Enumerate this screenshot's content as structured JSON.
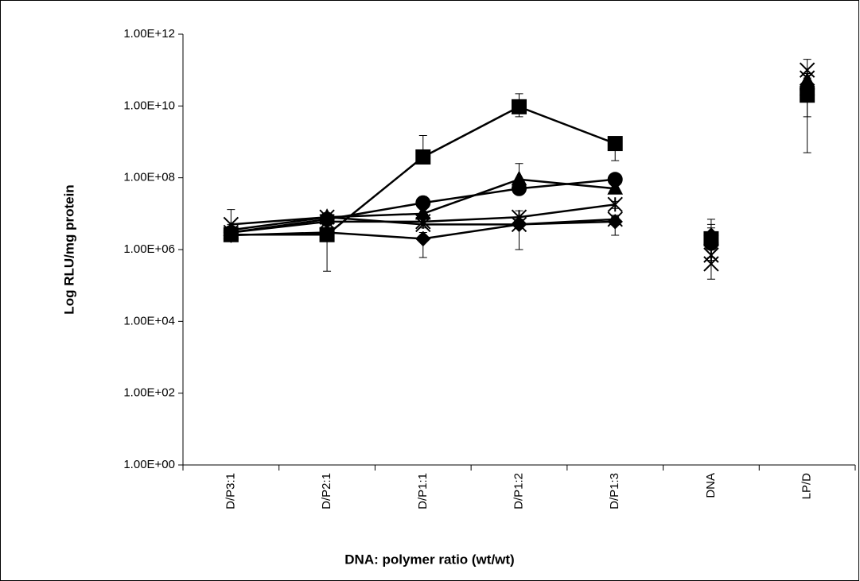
{
  "chart_data": {
    "type": "line",
    "x_label": "DNA: polymer ratio (wt/wt)",
    "y_label": "Log RLU/mg protein",
    "log_y": true,
    "categories": [
      "D/P3:1",
      "D/P2:1",
      "D/P1:1",
      "D/P1:2",
      "D/P1:3",
      "DNA",
      "LP/D"
    ],
    "connected_categories": 5,
    "ylim": [
      1,
      1000000000000
    ],
    "yticks": [
      {
        "value": 1,
        "label": "1.00E+00"
      },
      {
        "value": 100,
        "label": "1.00E+02"
      },
      {
        "value": 10000,
        "label": "1.00E+04"
      },
      {
        "value": 1000000,
        "label": "1.00E+06"
      },
      {
        "value": 100000000,
        "label": "1.00E+08"
      },
      {
        "value": 10000000000,
        "label": "1.00E+10"
      },
      {
        "value": 1000000000000,
        "label": "1.00E+12"
      }
    ],
    "series": [
      {
        "marker": "square",
        "color": "#000000",
        "values": [
          2600000,
          2600000,
          380000000,
          9500000000,
          900000000,
          2000000,
          20000000000
        ],
        "error_low": [
          2000000,
          250000,
          250000000,
          5000000000,
          300000000,
          1000000,
          5000000000
        ],
        "error_high": [
          3500000,
          8000000,
          1500000000,
          22000000000,
          1100000000,
          4000000,
          40000000000
        ]
      },
      {
        "marker": "circle",
        "color": "#000000",
        "values": [
          3000000,
          7000000,
          20000000,
          50000000,
          90000000,
          1500000,
          30000000000
        ],
        "error_low": [
          2500000,
          5000000,
          15000000,
          35000000,
          70000000,
          1000000,
          20000000000
        ],
        "error_high": [
          4000000,
          9000000,
          30000000,
          70000000,
          100000000,
          2500000,
          45000000000
        ]
      },
      {
        "marker": "triangle",
        "color": "#000000",
        "values": [
          3500000,
          8000000,
          10000000,
          90000000,
          50000000,
          2000000,
          50000000000
        ],
        "error_low": [
          2500000,
          6000000,
          8000000,
          50000000,
          40000000,
          1500000,
          30000000000
        ],
        "error_high": [
          5000000,
          10000000,
          13000000,
          250000000,
          60000000,
          3000000,
          70000000000
        ]
      },
      {
        "marker": "diamond",
        "color": "#000000",
        "values": [
          2500000,
          3000000,
          2000000,
          5000000,
          6000000,
          2500000,
          20000000000
        ],
        "error_low": [
          2000000,
          2500000,
          600000,
          1000000,
          2500000,
          1500000,
          500000000
        ],
        "error_high": [
          3000000,
          3500000,
          3000000,
          7000000,
          8000000,
          5000000,
          30000000000
        ]
      },
      {
        "marker": "x",
        "color": "#000000",
        "values": [
          5000000,
          8000000,
          5000000,
          5000000,
          7000000,
          400000,
          100000000000
        ],
        "error_low": [
          3500000,
          6000000,
          4000000,
          4000000,
          5000000,
          150000,
          60000000000
        ],
        "error_high": [
          13000000,
          10000000,
          7000000,
          7000000,
          9000000,
          600000,
          200000000000
        ]
      },
      {
        "marker": "star",
        "color": "#000000",
        "values": [
          3000000,
          6000000,
          6000000,
          8000000,
          18000000,
          700000,
          60000000000
        ],
        "error_low": [
          2500000,
          5000000,
          5000000,
          6000000,
          14000000,
          500000,
          40000000000
        ],
        "error_high": [
          4000000,
          7000000,
          7000000,
          12000000,
          22000000,
          7000000,
          80000000000
        ]
      }
    ]
  }
}
